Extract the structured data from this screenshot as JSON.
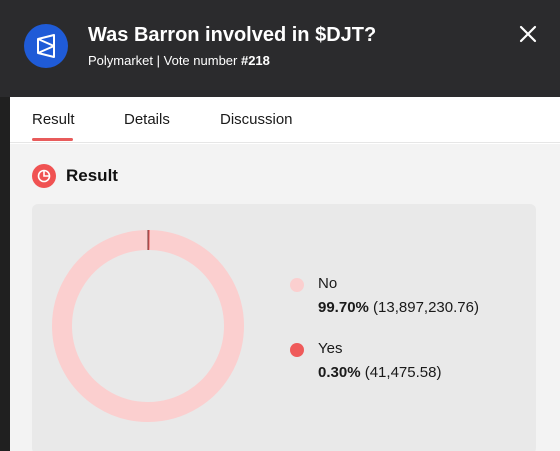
{
  "header": {
    "title": "Was Barron involved in $DJT?",
    "source": "Polymarket",
    "separator": " | ",
    "vote_prefix": "Vote number ",
    "vote_number": "#218",
    "logo_icon": "polymarket-logo-icon",
    "close_icon": "close-icon"
  },
  "tabs": [
    {
      "label": "Result",
      "active": true
    },
    {
      "label": "Details",
      "active": false
    },
    {
      "label": "Discussion",
      "active": false
    }
  ],
  "result": {
    "heading": "Result",
    "icon": "pie-chart-icon"
  },
  "chart_data": {
    "type": "pie",
    "style": "donut",
    "categories": [
      "No",
      "Yes"
    ],
    "values": [
      99.7,
      0.3
    ],
    "percent_labels": [
      "99.70%",
      "0.30%"
    ],
    "amount_labels": [
      "(13,897,230.76)",
      "(41,475.58)"
    ],
    "colors": [
      "#fbcfcf",
      "#ef5a5a"
    ],
    "legend_position": "right"
  },
  "colors": {
    "header_bg": "#2b2b2d",
    "accent": "#e85b5b",
    "logo_bg": "#1f5bd7"
  }
}
